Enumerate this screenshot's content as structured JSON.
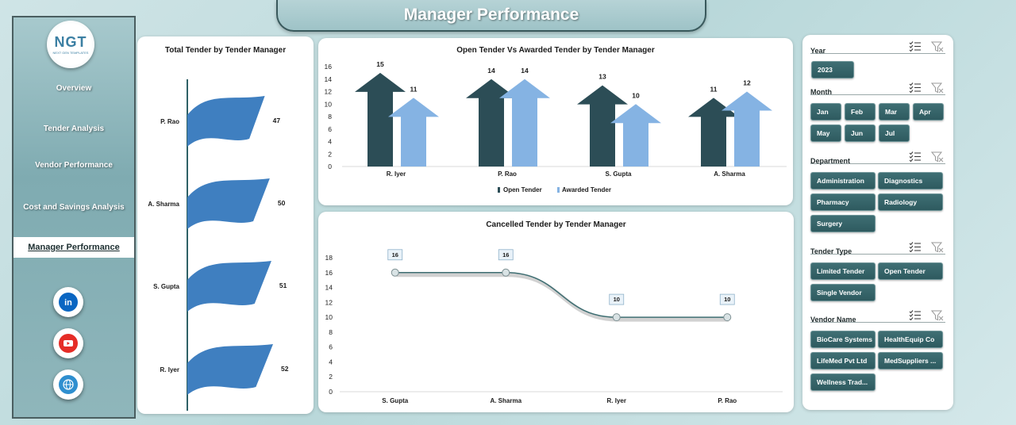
{
  "header": {
    "title": "Manager Performance"
  },
  "logo": {
    "text": "NGT",
    "tagline": "NEXT GEN TEMPLATES"
  },
  "sidebar": {
    "items": [
      {
        "label": "Overview",
        "active": false
      },
      {
        "label": "Tender Analysis",
        "active": false
      },
      {
        "label": "Vendor Performance",
        "active": false
      },
      {
        "label": "Cost and Savings Analysis",
        "active": false
      },
      {
        "label": "Manager Performance",
        "active": true
      }
    ],
    "social": [
      "linkedin-icon",
      "youtube-icon",
      "globe-icon"
    ]
  },
  "colors": {
    "open": "#2c4d56",
    "awarded": "#85b3e3",
    "flag": "#3f7fc0",
    "line": "#3e6e72",
    "chip": "#30595e"
  },
  "chart_data": [
    {
      "type": "bar",
      "title": "Total Tender by Tender Manager",
      "categories": [
        "P. Rao",
        "A. Sharma",
        "S. Gupta",
        "R. Iyer"
      ],
      "values": [
        47,
        50,
        51,
        52
      ]
    },
    {
      "type": "bar",
      "title": "Open Tender Vs Awarded Tender by Tender Manager",
      "categories": [
        "R. Iyer",
        "P. Rao",
        "S. Gupta",
        "A. Sharma"
      ],
      "series": [
        {
          "name": "Open Tender",
          "values": [
            15,
            14,
            13,
            11
          ]
        },
        {
          "name": "Awarded Tender",
          "values": [
            11,
            14,
            10,
            12
          ]
        }
      ],
      "ylim": [
        0,
        16
      ],
      "yticks": [
        "0",
        "2",
        "4",
        "6",
        "8",
        "10",
        "12",
        "14",
        "16"
      ],
      "legend": "bottom"
    },
    {
      "type": "line",
      "title": "Cancelled Tender by Tender Manager",
      "categories": [
        "S. Gupta",
        "A. Sharma",
        "R. Iyer",
        "P. Rao"
      ],
      "values": [
        16,
        16,
        10,
        10
      ],
      "ylim": [
        0,
        18
      ],
      "yticks": [
        "0",
        "2",
        "4",
        "6",
        "8",
        "10",
        "12",
        "14",
        "16",
        "18"
      ]
    }
  ],
  "filters": [
    {
      "title": "Year",
      "options": [
        "2023"
      ]
    },
    {
      "title": "Month",
      "options": [
        "Jan",
        "Feb",
        "Mar",
        "Apr",
        "May",
        "Jun",
        "Jul"
      ]
    },
    {
      "title": "Department",
      "options": [
        "Administration",
        "Diagnostics",
        "Pharmacy",
        "Radiology",
        "Surgery"
      ]
    },
    {
      "title": "Tender Type",
      "options": [
        "Limited Tender",
        "Open Tender",
        "Single Vendor"
      ]
    },
    {
      "title": "Vendor Name",
      "options": [
        "BioCare Systems",
        "HealthEquip Co",
        "LifeMed Pvt Ltd",
        "MedSuppliers ...",
        "Wellness Trad..."
      ]
    }
  ]
}
